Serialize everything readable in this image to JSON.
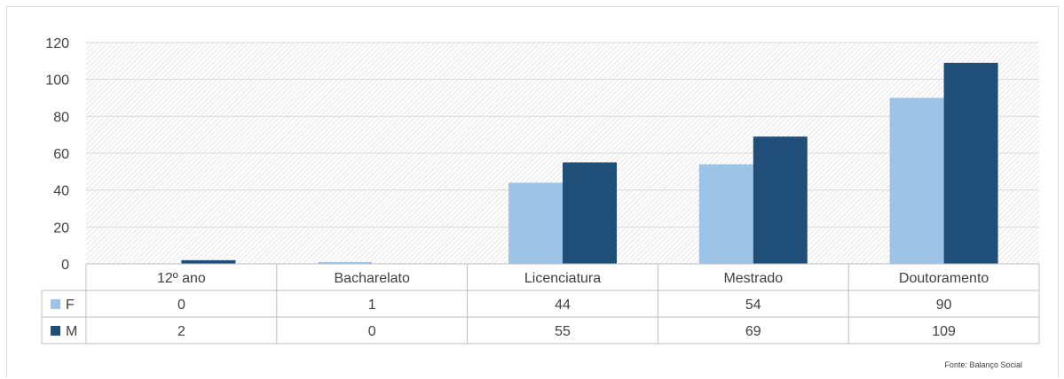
{
  "chart_data": {
    "type": "bar",
    "categories": [
      "12º ano",
      "Bacharelato",
      "Licenciatura",
      "Mestrado",
      "Doutoramento"
    ],
    "series": [
      {
        "name": "F",
        "values": [
          0,
          1,
          44,
          54,
          90
        ],
        "color": "#9dc3e6"
      },
      {
        "name": "M",
        "values": [
          2,
          0,
          55,
          69,
          109
        ],
        "color": "#1f4e79"
      }
    ],
    "ylim": [
      0,
      120
    ],
    "yticks": [
      0,
      20,
      40,
      60,
      80,
      100,
      120
    ],
    "grid": true,
    "legend": "data table",
    "data_table": true,
    "title": "",
    "xlabel": "",
    "ylabel": ""
  },
  "source": "Fonte: Balanço Social"
}
